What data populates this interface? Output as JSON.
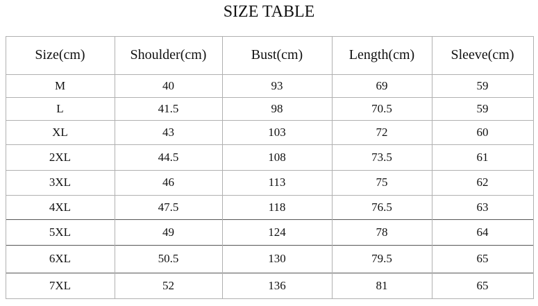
{
  "header": {
    "title": "SIZE TABLE"
  },
  "table": {
    "columns": [
      "Size(cm)",
      "Shoulder(cm)",
      "Bust(cm)",
      "Length(cm)",
      "Sleeve(cm)"
    ],
    "rows": [
      [
        "M",
        "40",
        "93",
        "69",
        "59"
      ],
      [
        "L",
        "41.5",
        "98",
        "70.5",
        "59"
      ],
      [
        "XL",
        "43",
        "103",
        "72",
        "60"
      ],
      [
        "2XL",
        "44.5",
        "108",
        "73.5",
        "61"
      ],
      [
        "3XL",
        "46",
        "113",
        "75",
        "62"
      ],
      [
        "4XL",
        "47.5",
        "118",
        "76.5",
        "63"
      ],
      [
        "5XL",
        "49",
        "124",
        "78",
        "64"
      ],
      [
        "6XL",
        "50.5",
        "130",
        "79.5",
        "65"
      ],
      [
        "7XL",
        "52",
        "136",
        "81",
        "65"
      ]
    ]
  }
}
